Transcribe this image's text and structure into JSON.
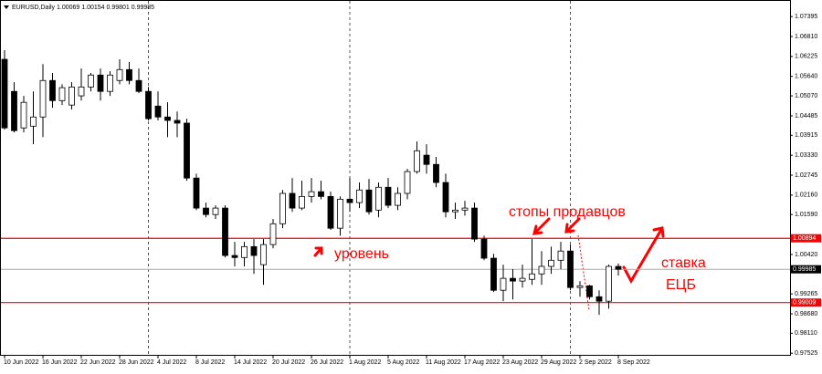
{
  "chart_data": {
    "type": "candlestick",
    "title": "EURUSD,Daily  1.00069 1.00154 0.99801 0.99985",
    "categories": [
      "10 Jun 2022",
      null,
      null,
      null,
      "16 Jun 2022",
      null,
      null,
      null,
      "22 Jun 2022",
      null,
      null,
      null,
      "28 Jun 2022",
      null,
      null,
      null,
      "4 Jul 2022",
      null,
      null,
      null,
      "8 Jul 2022",
      null,
      null,
      null,
      "14 Jul 2022",
      null,
      null,
      null,
      "20 Jul 2022",
      null,
      null,
      null,
      "26 Jul 2022",
      null,
      null,
      null,
      "1 Aug 2022",
      null,
      null,
      null,
      "5 Aug 2022",
      null,
      null,
      null,
      "11 Aug 2022",
      null,
      null,
      null,
      "17 Aug 2022",
      null,
      null,
      null,
      "23 Aug 2022",
      null,
      null,
      null,
      "29 Aug 2022",
      null,
      null,
      null,
      "2 Sep 2022",
      null,
      null,
      null,
      "8 Sep 2022"
    ],
    "open": [
      1.0614,
      1.052,
      1.0413,
      1.0418,
      1.0445,
      1.0552,
      1.0493,
      1.048,
      1.0507,
      1.0533,
      1.0568,
      1.052,
      1.0552,
      1.0584,
      1.0552,
      1.052,
      1.0477,
      1.0445,
      1.0435,
      1.0427,
      1.0266,
      1.0178,
      1.0159,
      1.0178,
      1.0039,
      1.0033,
      1.0065,
      1.0012,
      1.0071,
      1.0132,
      1.0221,
      1.0178,
      1.0212,
      1.0226,
      1.0212,
      1.0119,
      1.0204,
      1.0194,
      1.0231,
      1.0172,
      1.0239,
      1.0186,
      1.0221,
      1.0285,
      1.0333,
      1.0306,
      1.0253,
      1.0167,
      1.0172,
      1.0178,
      1.0087,
      1.0031,
      0.9937,
      0.9972,
      0.9964,
      0.9969,
      0.9985,
      1.0007,
      1.0025,
      1.0052,
      0.9945,
      0.995,
      0.9918,
      0.9905,
      1.00069
    ],
    "high": [
      1.0641,
      1.0547,
      1.0507,
      1.052,
      1.06,
      1.0574,
      1.0541,
      1.0547,
      1.0587,
      1.0574,
      1.0587,
      1.0579,
      1.0614,
      1.0606,
      1.0587,
      1.0533,
      1.052,
      1.0488,
      1.0461,
      1.044,
      1.0279,
      1.0194,
      1.0186,
      1.0186,
      1.0079,
      1.0079,
      1.0087,
      1.0087,
      1.0146,
      1.0231,
      1.0266,
      1.0258,
      1.0266,
      1.0258,
      1.0226,
      1.0212,
      1.0266,
      1.0253,
      1.0263,
      1.0253,
      1.0266,
      1.0239,
      1.0293,
      1.0373,
      1.0365,
      1.0328,
      1.0279,
      1.0194,
      1.0199,
      1.0194,
      1.0097,
      1.0044,
      1.0012,
      0.9999,
      1.0012,
      1.0087,
      1.0052,
      1.0065,
      1.0079,
      1.0071,
      0.9964,
      0.9953,
      0.9937,
      1.0012,
      1.00154
    ],
    "low": [
      1.0408,
      1.04,
      1.04,
      1.0365,
      1.0386,
      1.0472,
      1.048,
      1.0467,
      1.0493,
      1.052,
      1.0493,
      1.0507,
      1.0541,
      1.0541,
      1.0515,
      1.0435,
      1.0435,
      1.0386,
      1.0386,
      1.0258,
      1.0172,
      1.0151,
      1.0146,
      1.0033,
      1.0007,
      1.0007,
      0.9985,
      0.9953,
      1.006,
      1.0119,
      1.0167,
      1.0172,
      1.0194,
      1.0204,
      1.0114,
      1.0097,
      1.0167,
      1.0178,
      1.0159,
      1.0151,
      1.0178,
      1.0172,
      1.0204,
      1.0279,
      1.0279,
      1.0239,
      1.0151,
      1.0146,
      1.0156,
      1.0079,
      1.0025,
      0.9932,
      0.9905,
      0.991,
      0.9945,
      0.9953,
      0.9953,
      0.9985,
      0.9999,
      0.9937,
      0.9918,
      0.991,
      0.9865,
      0.9883,
      0.99801
    ],
    "close": [
      1.0413,
      1.0405,
      1.0488,
      1.0445,
      1.0552,
      1.0493,
      1.0531,
      1.0533,
      1.0533,
      1.0568,
      1.052,
      1.0568,
      1.0584,
      1.0552,
      1.052,
      1.044,
      1.0445,
      1.0435,
      1.0427,
      1.0266,
      1.0178,
      1.0159,
      1.0178,
      1.0039,
      1.0033,
      1.0065,
      1.0039,
      1.0071,
      1.0132,
      1.0221,
      1.0178,
      1.0212,
      1.0226,
      1.0212,
      1.0119,
      1.0204,
      1.0194,
      1.0231,
      1.0167,
      1.0239,
      1.0186,
      1.0221,
      1.0285,
      1.0346,
      1.0306,
      1.0253,
      1.0167,
      1.0172,
      1.0178,
      1.0087,
      1.0031,
      0.9937,
      0.9972,
      0.9964,
      0.9972,
      0.9985,
      1.0007,
      1.0025,
      1.0052,
      0.9945,
      0.995,
      0.9918,
      0.9905,
      1.0007,
      0.99985
    ],
    "ylim": [
      0.9745,
      1.0788
    ],
    "yticks": [
      1.07395,
      {
        "value": 1.0681,
        "label": "1.06810"
      },
      1.06225,
      {
        "value": 1.0564,
        "label": "1.05640"
      },
      {
        "value": 1.0507,
        "label": "1.05070"
      },
      1.04485,
      1.03915,
      {
        "value": 1.0333,
        "label": "1.03330"
      },
      1.02745,
      {
        "value": 1.0216,
        "label": "1.02160"
      },
      {
        "value": 1.0159,
        "label": "1.01590"
      },
      {
        "value": 1.0042,
        "label": "1.00420"
      },
      0.99265,
      {
        "value": 0.9868,
        "label": "0.98680"
      },
      {
        "value": 0.9811,
        "label": "0.98110"
      },
      0.97525
    ],
    "hlines": [
      {
        "value": 1.00894,
        "color": "#ff0000"
      },
      {
        "value": 0.99009,
        "color": "#ff0000"
      }
    ],
    "current_price": 0.99985,
    "annotations": [
      "уровень",
      "стопы продавцов",
      "ставка",
      "ЕЦБ"
    ]
  }
}
